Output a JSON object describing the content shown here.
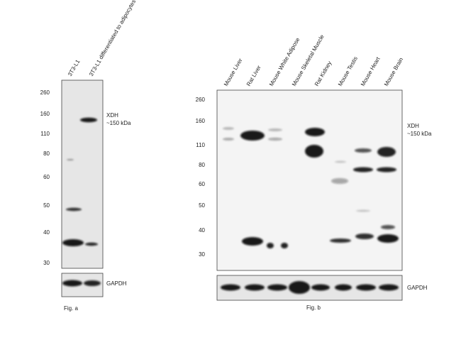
{
  "panels": [
    {
      "lanes": [
        "3T3-L1",
        "3T3-L1 differentiated to adipocytes"
      ],
      "markers": [
        "260",
        "160",
        "110",
        "80",
        "60",
        "50",
        "40",
        "30"
      ],
      "target": {
        "name": "XDH",
        "size": "~150 kDa"
      },
      "loading_control": "GAPDH",
      "caption": "Fig. a"
    },
    {
      "lanes": [
        "Mouse Liver",
        "Rat Liver",
        "Mouse White Adipose",
        "Mouse Skeletal Muscle",
        "Rat Kidney",
        "Mouse Testis",
        "Mouse Heart",
        "Mouse Brain"
      ],
      "markers": [
        "260",
        "160",
        "110",
        "80",
        "60",
        "50",
        "40",
        "30"
      ],
      "target": {
        "name": "XDH",
        "size": "~150 kDa"
      },
      "loading_control": "GAPDH",
      "caption": "Fig. b"
    }
  ]
}
